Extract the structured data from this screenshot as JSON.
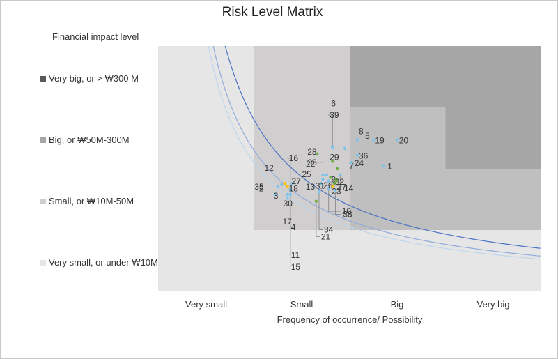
{
  "chart_data": {
    "type": "scatter",
    "title": "Risk Level Matrix",
    "ylabel": "Financial impact level",
    "xlabel": "Frequency of occurrence/  Possibility",
    "x_categories": [
      "Very small",
      "Small",
      "Big",
      "Very big"
    ],
    "y_categories": [
      "Very small, or under ₩10M",
      "Small, or ₩10M-50M",
      "Big, or ₩50M-300M",
      "Very big, or > ₩300 M"
    ],
    "xlim": [
      0,
      4
    ],
    "ylim": [
      0,
      4
    ],
    "grid": false,
    "legend_position": "left",
    "colors": {
      "very_small_zone": "#e6e6e6",
      "small_zone": "#d0cece",
      "big_zone": "#bfbfbf",
      "very_big_zone": "#a6a6a6",
      "curve_dark": "#4a72c4",
      "curve_mid": "#8faadc",
      "curve_light": "#bdd7ee",
      "marker_blue": "#7fc3e8",
      "marker_green": "#70ad47",
      "marker_yellow": "#ffc000",
      "leader_line": "#808080"
    },
    "zones": [
      {
        "level": "Small",
        "x": [
          1.0,
          4.0
        ],
        "y": [
          1.0,
          4.0
        ]
      },
      {
        "level": "Big",
        "x": [
          2.0,
          4.0
        ],
        "y": [
          1.0,
          3.0
        ]
      },
      {
        "level": "Big",
        "x": [
          2.0,
          4.0
        ],
        "y": [
          2.0,
          4.0
        ]
      },
      {
        "level": "Very big",
        "x": [
          2.0,
          4.0
        ],
        "y": [
          3.0,
          4.0
        ]
      },
      {
        "level": "Very big",
        "x": [
          3.0,
          4.0
        ],
        "y": [
          2.0,
          4.0
        ]
      }
    ],
    "curves": [
      {
        "k": 2.8,
        "color_key": "curve_dark"
      },
      {
        "k": 2.3,
        "color_key": "curve_mid"
      },
      {
        "k": 2.1,
        "color_key": "curve_light"
      }
    ],
    "points": [
      {
        "label": "1",
        "x": 2.35,
        "y": 2.05,
        "color": "#7fc3e8"
      },
      {
        "label": "2",
        "x": 1.25,
        "y": 1.71,
        "color": "#7fc3e8"
      },
      {
        "label": "3",
        "x": 1.22,
        "y": 1.58,
        "color": "#7fc3e8"
      },
      {
        "label": "4",
        "x": 1.38,
        "y": 1.58,
        "color": "#7fc3e8"
      },
      {
        "label": "5",
        "x": 1.95,
        "y": 2.33,
        "color": "#7fc3e8"
      },
      {
        "label": "6",
        "x": 1.82,
        "y": 2.36,
        "color": "#7fc3e8"
      },
      {
        "label": "7",
        "x": 1.87,
        "y": 2.0,
        "color": "#70ad47"
      },
      {
        "label": "8",
        "x": 2.08,
        "y": 2.47,
        "color": "#7fc3e8"
      },
      {
        "label": "9",
        "x": 1.8,
        "y": 1.86,
        "color": "#70ad47"
      },
      {
        "label": "10",
        "x": 1.78,
        "y": 1.68,
        "color": "#7fc3e8"
      },
      {
        "label": "11",
        "x": 1.38,
        "y": 1.58,
        "color": "#7fc3e8"
      },
      {
        "label": "12",
        "x": 1.32,
        "y": 1.76,
        "color": "#ffc000"
      },
      {
        "label": "13",
        "x": 1.7,
        "y": 1.76,
        "color": "#7fc3e8"
      },
      {
        "label": "14",
        "x": 1.84,
        "y": 1.76,
        "color": "#70ad47"
      },
      {
        "label": "15",
        "x": 1.38,
        "y": 1.58,
        "color": "#7fc3e8"
      },
      {
        "label": "16",
        "x": 1.38,
        "y": 1.66,
        "color": "#7fc3e8"
      },
      {
        "label": "17",
        "x": 1.35,
        "y": 1.52,
        "color": "#7fc3e8"
      },
      {
        "label": "18",
        "x": 1.35,
        "y": 1.71,
        "color": "#ffc000"
      },
      {
        "label": "19",
        "x": 2.25,
        "y": 2.47,
        "color": "#7fc3e8"
      },
      {
        "label": "20",
        "x": 2.5,
        "y": 2.47,
        "color": "#7fc3e8"
      },
      {
        "label": "21",
        "x": 1.65,
        "y": 1.47,
        "color": "#70ad47"
      },
      {
        "label": "22",
        "x": 1.76,
        "y": 1.9,
        "color": "#7fc3e8"
      },
      {
        "label": "23",
        "x": 1.82,
        "y": 1.72,
        "color": "#ffc000"
      },
      {
        "label": "24",
        "x": 2.02,
        "y": 2.1,
        "color": "#7fc3e8"
      },
      {
        "label": "25",
        "x": 1.72,
        "y": 1.83,
        "color": "#7fc3e8"
      },
      {
        "label": "26",
        "x": 1.9,
        "y": 1.9,
        "color": "#7fc3e8"
      },
      {
        "label": "27",
        "x": 1.4,
        "y": 1.76,
        "color": "#7fc3e8"
      },
      {
        "label": "28",
        "x": 1.66,
        "y": 2.24,
        "color": "#70ad47"
      },
      {
        "label": "29",
        "x": 1.82,
        "y": 2.12,
        "color": "#70ad47"
      },
      {
        "label": "30",
        "x": 1.35,
        "y": 1.58,
        "color": "#7fc3e8"
      },
      {
        "label": "31",
        "x": 1.78,
        "y": 1.8,
        "color": "#7fc3e8"
      },
      {
        "label": "32",
        "x": 1.86,
        "y": 1.82,
        "color": "#70ad47"
      },
      {
        "label": "33",
        "x": 1.72,
        "y": 1.9,
        "color": "#7fc3e8"
      },
      {
        "label": "34",
        "x": 1.68,
        "y": 1.62,
        "color": "#7fc3e8"
      },
      {
        "label": "35",
        "x": 1.29,
        "y": 1.74,
        "color": "#7fc3e8"
      },
      {
        "label": "36",
        "x": 2.08,
        "y": 2.22,
        "color": "#7fc3e8"
      },
      {
        "label": "37",
        "x": 1.86,
        "y": 1.8,
        "color": "#70ad47"
      },
      {
        "label": "38",
        "x": 1.85,
        "y": 1.64,
        "color": "#7fc3e8"
      },
      {
        "label": "39",
        "x": 1.82,
        "y": 2.34,
        "color": "#7fc3e8"
      }
    ]
  }
}
